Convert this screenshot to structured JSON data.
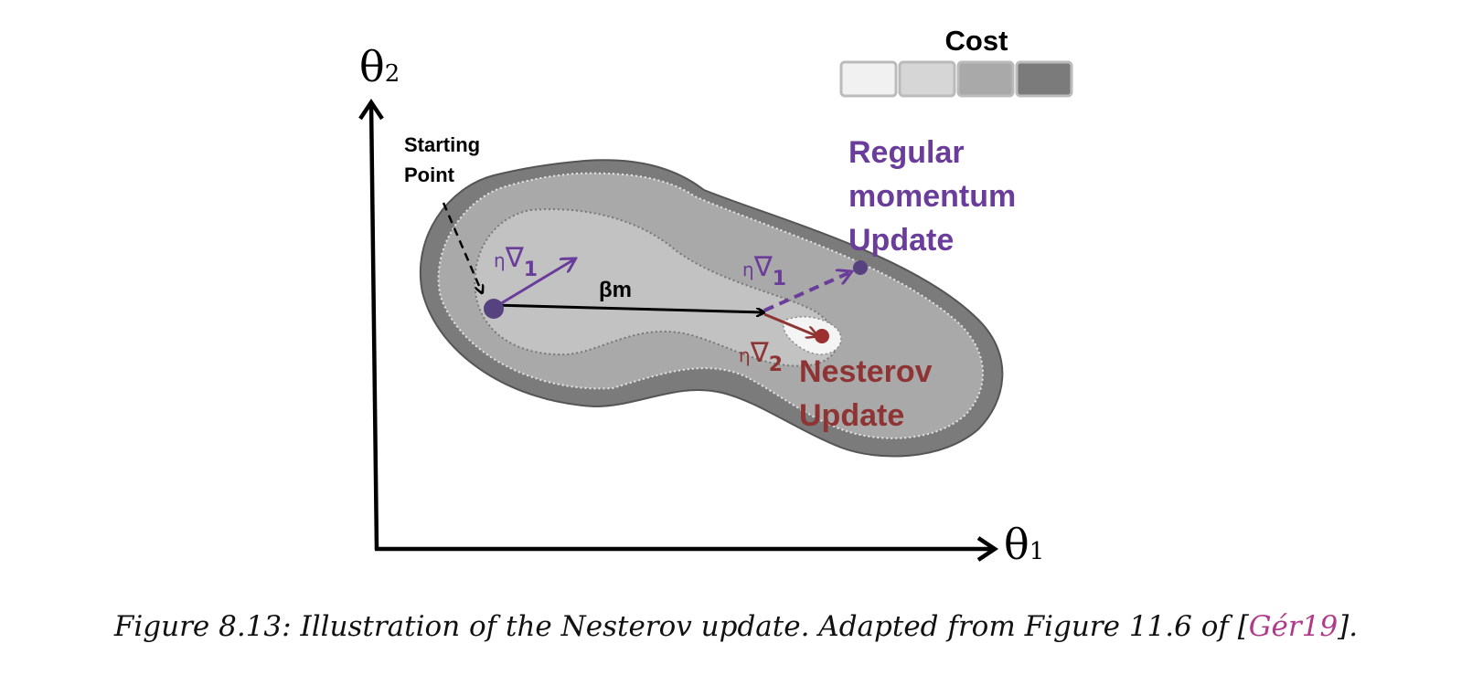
{
  "axes": {
    "x_label": "θ",
    "x_sub": "1",
    "y_label": "θ",
    "y_sub": "2"
  },
  "legend": {
    "title": "Cost",
    "swatch_colors": [
      "#f1f1f1",
      "#d6d6d6",
      "#a9a9a9",
      "#7b7b7b"
    ]
  },
  "labels": {
    "starting_point_line1": "Starting",
    "starting_point_line2": "Point",
    "beta_m": "βm",
    "eta": "η",
    "nabla": "∇",
    "sub_1": "1",
    "sub_2": "2",
    "regular_line1": "Regular",
    "regular_line2": "momentum",
    "regular_line3": "Update",
    "nesterov_line1": "Nesterov",
    "nesterov_line2": "Update"
  },
  "colors": {
    "purple": "#6a3d9a",
    "red": "#8e3434",
    "black": "#000000",
    "outer_region": "#7b7b7b",
    "mid_region": "#a9a9a9",
    "inner_region": "#c2c2c2",
    "minimum_region": "#f4f4f4"
  },
  "caption": {
    "prefix": "Figure 8.13: Illustration of the Nesterov update. Adapted from Figure 11.6 of [",
    "ref": "Gér19",
    "suffix": "]."
  }
}
